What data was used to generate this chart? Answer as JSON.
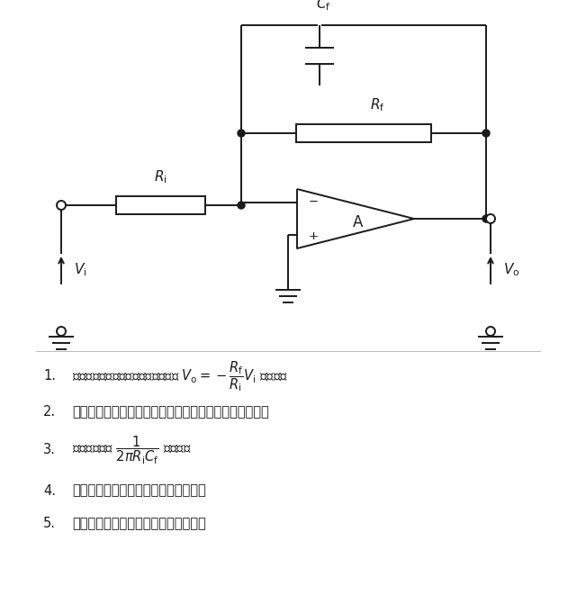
{
  "bg_color": "#ffffff",
  "line_color": "#1a1a1a",
  "lw": 1.4,
  "font_size": 10.5,
  "items": [
    {
      "num": "1.",
      "text": "遮断周波数より十分に低い帯域では $V_{\\mathrm{o}} = -\\dfrac{R_{\\mathrm{f}}}{R_{\\mathrm{i}}}V_{\\mathrm{i}}$ である。"
    },
    {
      "num": "2.",
      "text": "遮断周波数より十分に高い帯域では微分特性を有する。"
    },
    {
      "num": "3.",
      "text": "遮断周波数は $\\dfrac{1}{2\\pi R_{\\mathrm{i}}C_{\\mathrm{f}}}$ である。"
    },
    {
      "num": "4.",
      "text": "入力インピーダンスは無限大である。"
    },
    {
      "num": "5.",
      "text": "出力インピーダンスは無限大である。"
    }
  ]
}
